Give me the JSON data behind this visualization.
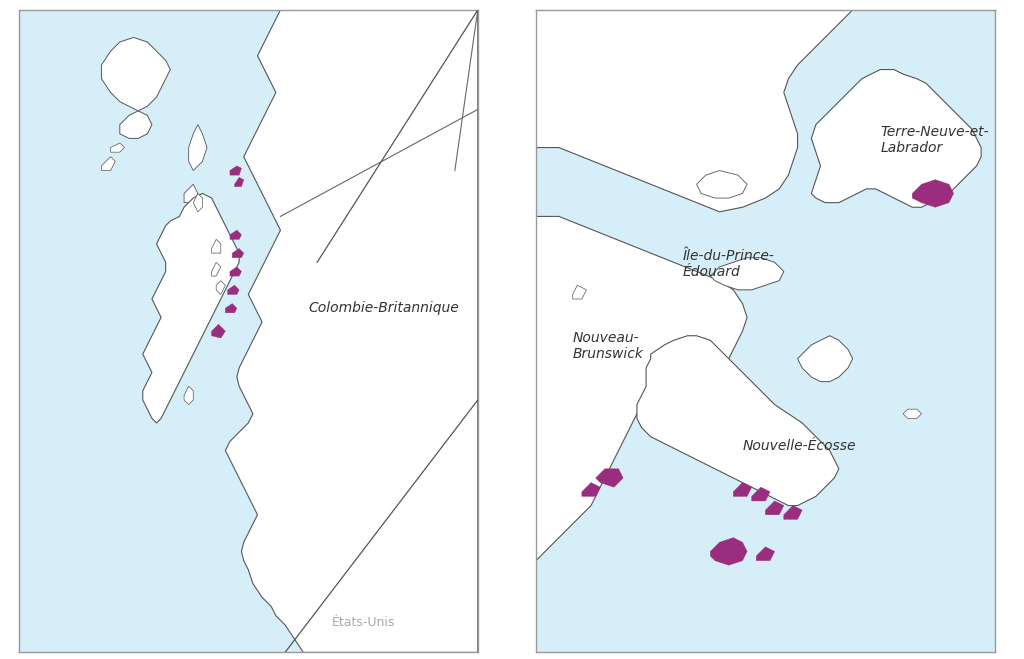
{
  "background_color": "#ffffff",
  "land_color": "#ffffff",
  "land_edge_color": "#555555",
  "salmon_color": "#9b2d7f",
  "ocean_color": "#d6eef7",
  "border_color": "#aaaaaa",
  "text_color": "#333333",
  "gray_text": "#aaaaaa",
  "label_us": "États-Unis",
  "label_bc": "Colombie-Britannique",
  "label_nl": "Terre-Neuve-et-\nLabrador",
  "label_nb": "Nouveau-\nBrunswick",
  "label_ns": "Nouvelle-Écosse",
  "label_pe": "Île-du-Prince-\nÉdouard",
  "fontsize_main": 10,
  "fontsize_us": 9,
  "lw_coast": 0.8,
  "lw_border": 0.8
}
